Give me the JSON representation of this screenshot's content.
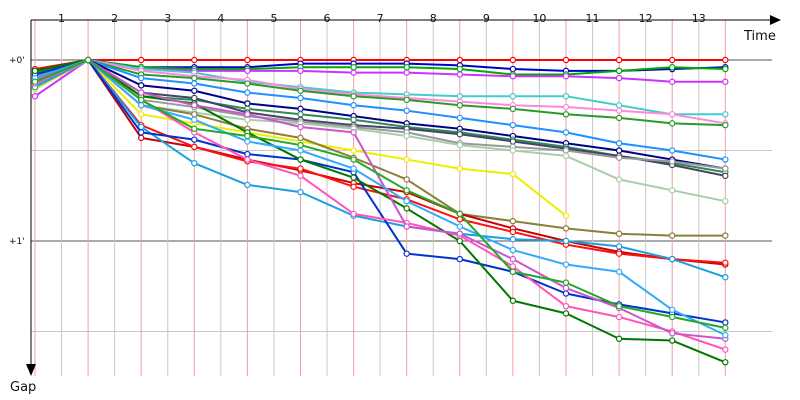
{
  "chart_data": {
    "type": "line",
    "x_axis": {
      "label": "Time",
      "ticks": [
        "1",
        "2",
        "3",
        "4",
        "5",
        "6",
        "7",
        "8",
        "9",
        "10",
        "11",
        "12",
        "13"
      ]
    },
    "y_axis": {
      "label": "Gap",
      "ticks": [
        "+0'",
        "+1'"
      ],
      "direction": "down",
      "ylim": [
        0,
        1.75
      ]
    },
    "grid": true,
    "style": {
      "grid_color": "#c8c8c8",
      "lap_line_color": "#f0a0a0",
      "connector_color": "#f08080"
    },
    "x_points": [
      1,
      2,
      3,
      4,
      5,
      6,
      7,
      8,
      9,
      10,
      11,
      12,
      13,
      14
    ],
    "series": [
      {
        "color": "#ff0000",
        "values": [
          0.05,
          0,
          0,
          0,
          0,
          0,
          0,
          0,
          0,
          0,
          0,
          0,
          0,
          0
        ]
      },
      {
        "color": "#0000cc",
        "values": [
          0.06,
          0,
          0.04,
          0.04,
          0.04,
          0.02,
          0.02,
          0.02,
          0.03,
          0.05,
          0.06,
          0.06,
          0.05,
          0.04
        ]
      },
      {
        "color": "#00aa00",
        "values": [
          0.07,
          0,
          0.04,
          0.05,
          0.05,
          0.04,
          0.04,
          0.04,
          0.05,
          0.08,
          0.08,
          0.06,
          0.04,
          0.05
        ]
      },
      {
        "color": "#cc33ff",
        "values": [
          0.2,
          0,
          0.05,
          0.06,
          0.06,
          0.06,
          0.07,
          0.07,
          0.08,
          0.09,
          0.09,
          0.1,
          0.12,
          0.12
        ]
      },
      {
        "color": "#44cccc",
        "values": [
          0.14,
          0,
          0.05,
          0.07,
          0.12,
          0.15,
          0.18,
          0.19,
          0.2,
          0.2,
          0.2,
          0.25,
          0.3,
          0.3
        ]
      },
      {
        "color": "#ff88dd",
        "values": [
          0.15,
          0,
          0.06,
          0.09,
          0.11,
          0.16,
          0.19,
          0.21,
          0.23,
          0.25,
          0.26,
          0.28,
          0.3,
          0.35
        ]
      },
      {
        "color": "#2a9a2a",
        "values": [
          0.1,
          0,
          0.08,
          0.1,
          0.13,
          0.17,
          0.2,
          0.22,
          0.25,
          0.27,
          0.3,
          0.32,
          0.35,
          0.36
        ]
      },
      {
        "color": "#1e90ff",
        "values": [
          0.16,
          0,
          0.1,
          0.13,
          0.18,
          0.21,
          0.25,
          0.28,
          0.32,
          0.36,
          0.4,
          0.46,
          0.5,
          0.55
        ]
      },
      {
        "color": "#000088",
        "values": [
          0.11,
          0,
          0.14,
          0.17,
          0.24,
          0.27,
          0.31,
          0.35,
          0.38,
          0.42,
          0.46,
          0.5,
          0.55,
          0.6
        ]
      },
      {
        "color": "#2e8b57",
        "values": [
          0.12,
          0,
          0.2,
          0.22,
          0.27,
          0.3,
          0.33,
          0.37,
          0.4,
          0.44,
          0.48,
          0.53,
          0.57,
          0.62
        ]
      },
      {
        "color": "#444466",
        "values": [
          0.13,
          0,
          0.18,
          0.21,
          0.29,
          0.33,
          0.36,
          0.38,
          0.41,
          0.45,
          0.49,
          0.53,
          0.58,
          0.64
        ]
      },
      {
        "color": "#999999",
        "values": [
          0.09,
          0,
          0.22,
          0.26,
          0.31,
          0.34,
          0.37,
          0.4,
          0.46,
          0.48,
          0.5,
          0.54,
          0.56,
          0.6
        ]
      },
      {
        "color": "#aaccaa",
        "values": [
          0.11,
          0,
          0.25,
          0.29,
          0.33,
          0.35,
          0.38,
          0.42,
          0.47,
          0.5,
          0.53,
          0.66,
          0.72,
          0.78
        ]
      },
      {
        "color": "#eeee00",
        "values": [
          0.16,
          0,
          0.3,
          0.35,
          0.4,
          0.45,
          0.5,
          0.55,
          0.6,
          0.63,
          0.86,
          null,
          null,
          null
        ]
      },
      {
        "color": "#8b7d3a",
        "values": [
          0.08,
          0,
          0.25,
          0.3,
          0.38,
          0.43,
          0.54,
          0.66,
          0.85,
          0.89,
          0.93,
          0.96,
          0.97,
          0.97
        ]
      },
      {
        "color": "#cc0000",
        "values": [
          0.1,
          0,
          0.43,
          0.48,
          0.55,
          0.61,
          0.68,
          0.73,
          0.85,
          0.93,
          1.0,
          1.06,
          1.1,
          1.13
        ]
      },
      {
        "color": "#ff1111",
        "values": [
          0.12,
          0,
          0.36,
          0.48,
          0.56,
          0.6,
          0.7,
          0.77,
          0.88,
          0.95,
          1.02,
          1.07,
          1.1,
          1.12
        ]
      },
      {
        "color": "#1a9fe0",
        "values": [
          0.15,
          0,
          0.37,
          0.57,
          0.69,
          0.73,
          0.86,
          0.92,
          0.96,
          0.99,
          1.0,
          1.03,
          1.1,
          1.2
        ]
      },
      {
        "color": "#0033cc",
        "values": [
          0.08,
          0,
          0.4,
          0.44,
          0.52,
          0.55,
          0.62,
          1.07,
          1.1,
          1.17,
          1.29,
          1.35,
          1.4,
          1.45
        ]
      },
      {
        "color": "#007700",
        "values": [
          0.06,
          0,
          0.2,
          0.24,
          0.4,
          0.55,
          0.65,
          0.82,
          1.0,
          1.33,
          1.4,
          1.54,
          1.55,
          1.67
        ]
      },
      {
        "color": "#ff55bb",
        "values": [
          0.13,
          0,
          0.22,
          0.4,
          0.55,
          0.64,
          0.85,
          0.9,
          0.97,
          1.14,
          1.36,
          1.42,
          1.5,
          1.6
        ]
      },
      {
        "color": "#cc55cc",
        "values": [
          0.11,
          0,
          0.18,
          0.25,
          0.3,
          0.37,
          0.4,
          0.92,
          0.96,
          1.1,
          1.26,
          1.37,
          1.51,
          1.54
        ]
      },
      {
        "color": "#33aaff",
        "values": [
          0.1,
          0,
          0.25,
          0.33,
          0.45,
          0.5,
          0.6,
          0.78,
          0.92,
          1.05,
          1.13,
          1.17,
          1.38,
          1.52
        ]
      },
      {
        "color": "#22aa22",
        "values": [
          0.12,
          0,
          0.22,
          0.38,
          0.42,
          0.47,
          0.55,
          0.72,
          0.85,
          1.17,
          1.23,
          1.36,
          1.42,
          1.48
        ]
      }
    ]
  }
}
